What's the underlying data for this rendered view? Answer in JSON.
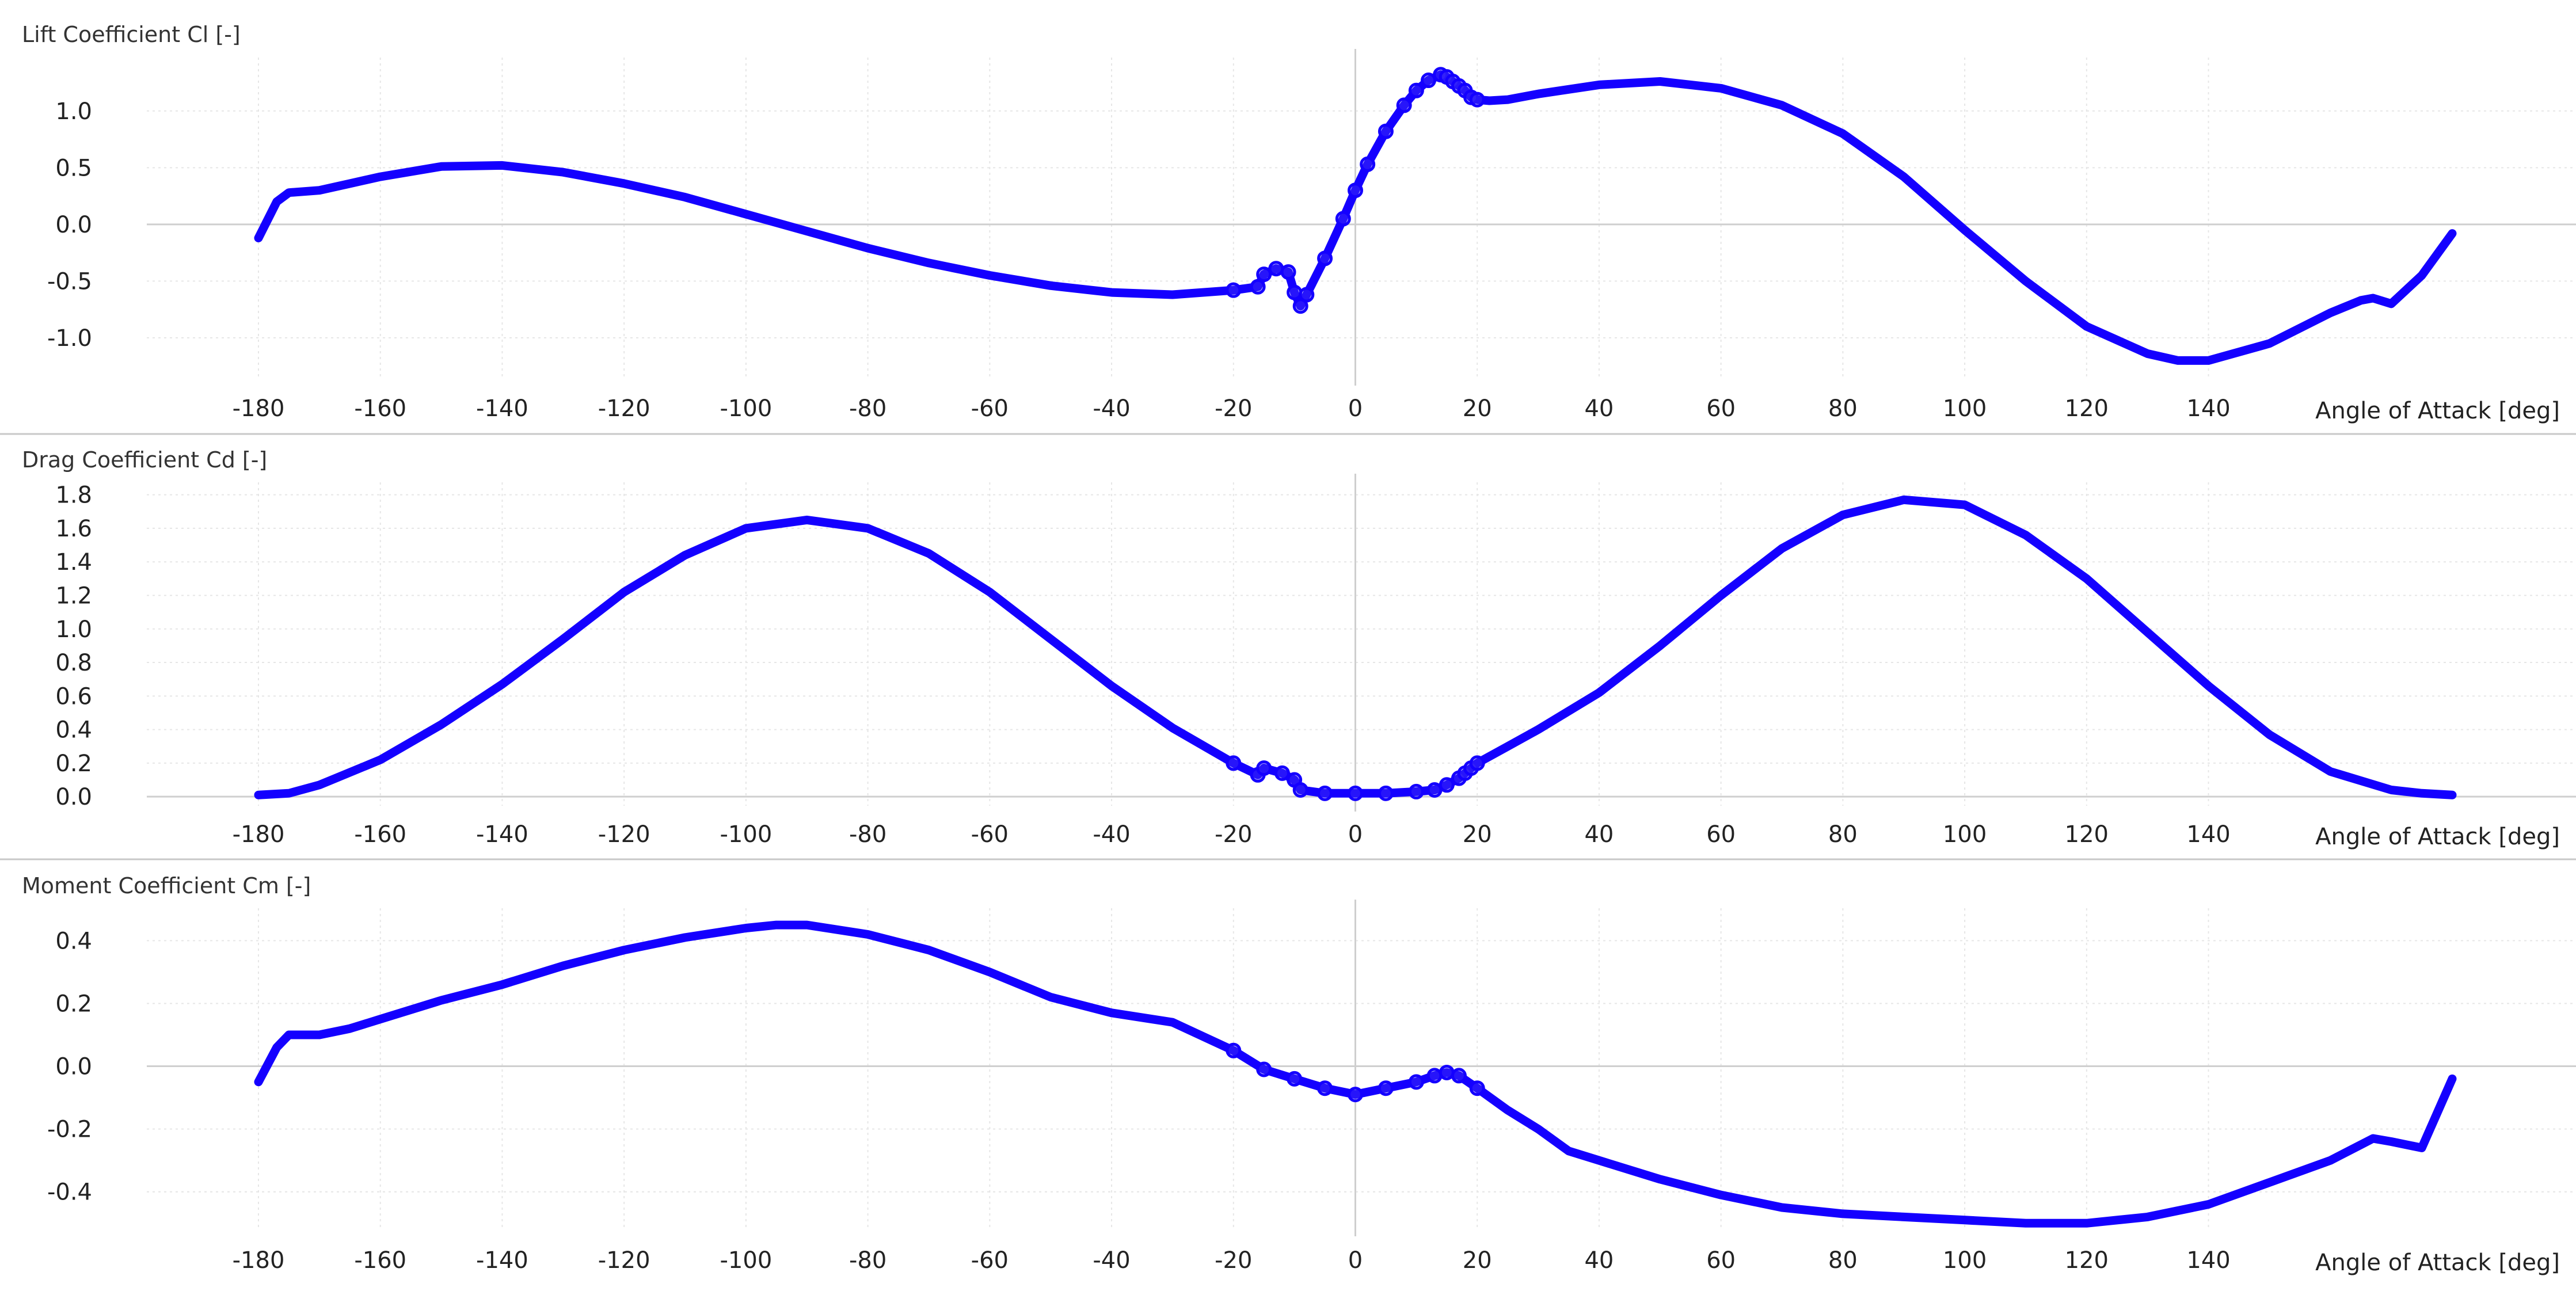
{
  "colors": {
    "line": "#1400ff",
    "grid": "#e6e6e6",
    "axis": "#cfcfcf",
    "text": "#222222"
  },
  "chart_data": [
    {
      "type": "line",
      "title": "Lift Coefficient Cl [-]",
      "xlabel": "Angle of Attack [deg]",
      "xlim": [
        -180,
        180
      ],
      "ylim": [
        -1.32,
        1.42
      ],
      "xticks": [
        -180,
        -160,
        -140,
        -120,
        -100,
        -80,
        -60,
        -40,
        -20,
        0,
        20,
        40,
        60,
        80,
        100,
        120,
        140
      ],
      "yticks": [
        1.0,
        0.5,
        0.0,
        -0.5,
        -1.0
      ],
      "ytick_labels": [
        "1.0",
        "0.5",
        "0.0",
        "-0.5",
        "-1.0"
      ],
      "grid": true,
      "series": [
        {
          "x": [
            -180,
            -177,
            -175,
            -170,
            -165,
            -160,
            -150,
            -140,
            -130,
            -120,
            -110,
            -100,
            -90,
            -80,
            -70,
            -60,
            -50,
            -40,
            -30,
            -20,
            -16,
            -15,
            -13,
            -11,
            -10,
            -9,
            -8,
            -5,
            -2,
            0,
            2,
            5,
            8,
            10,
            12,
            14,
            15,
            16,
            17,
            18,
            19,
            20,
            22,
            25,
            30,
            40,
            50,
            60,
            70,
            80,
            90,
            100,
            110,
            120,
            130,
            135,
            140,
            150,
            160,
            165,
            167,
            170,
            175,
            180
          ],
          "y": [
            -0.12,
            0.2,
            0.28,
            0.3,
            0.36,
            0.42,
            0.51,
            0.52,
            0.46,
            0.36,
            0.24,
            0.09,
            -0.06,
            -0.21,
            -0.34,
            -0.45,
            -0.54,
            -0.6,
            -0.62,
            -0.58,
            -0.55,
            -0.44,
            -0.39,
            -0.42,
            -0.6,
            -0.72,
            -0.62,
            -0.3,
            0.05,
            0.3,
            0.53,
            0.82,
            1.05,
            1.18,
            1.27,
            1.32,
            1.3,
            1.26,
            1.22,
            1.18,
            1.12,
            1.1,
            1.09,
            1.1,
            1.15,
            1.23,
            1.26,
            1.2,
            1.05,
            0.8,
            0.42,
            -0.05,
            -0.5,
            -0.9,
            -1.14,
            -1.2,
            -1.2,
            -1.05,
            -0.78,
            -0.67,
            -0.65,
            -0.7,
            -0.45,
            -0.08
          ]
        }
      ]
    },
    {
      "type": "line",
      "title": "Drag Coefficient Cd [-]",
      "xlabel": "Angle of Attack [deg]",
      "xlim": [
        -180,
        180
      ],
      "ylim": [
        -0.02,
        1.84
      ],
      "xticks": [
        -180,
        -160,
        -140,
        -120,
        -100,
        -80,
        -60,
        -40,
        -20,
        0,
        20,
        40,
        60,
        80,
        100,
        120,
        140
      ],
      "yticks": [
        1.8,
        1.6,
        1.4,
        1.2,
        1.0,
        0.8,
        0.6,
        0.4,
        0.2,
        0.0
      ],
      "ytick_labels": [
        "1.8",
        "1.6",
        "1.4",
        "1.2",
        "1.0",
        "0.8",
        "0.6",
        "0.4",
        "0.2",
        "0.0"
      ],
      "grid": true,
      "series": [
        {
          "x": [
            -180,
            -175,
            -170,
            -160,
            -150,
            -140,
            -130,
            -120,
            -110,
            -100,
            -90,
            -80,
            -70,
            -60,
            -50,
            -40,
            -30,
            -20,
            -16,
            -15,
            -12,
            -10,
            -9,
            -5,
            0,
            5,
            10,
            13,
            15,
            17,
            18,
            19,
            20,
            25,
            30,
            40,
            50,
            60,
            70,
            80,
            90,
            100,
            110,
            120,
            130,
            140,
            150,
            160,
            170,
            175,
            180
          ],
          "y": [
            0.01,
            0.02,
            0.07,
            0.22,
            0.43,
            0.67,
            0.94,
            1.22,
            1.44,
            1.6,
            1.65,
            1.6,
            1.45,
            1.22,
            0.94,
            0.66,
            0.41,
            0.2,
            0.13,
            0.17,
            0.14,
            0.1,
            0.04,
            0.02,
            0.02,
            0.02,
            0.03,
            0.04,
            0.07,
            0.11,
            0.14,
            0.17,
            0.2,
            0.3,
            0.4,
            0.62,
            0.9,
            1.2,
            1.48,
            1.68,
            1.77,
            1.74,
            1.56,
            1.3,
            0.98,
            0.66,
            0.37,
            0.15,
            0.04,
            0.02,
            0.01
          ]
        }
      ]
    },
    {
      "type": "line",
      "title": "Moment Coefficient Cm [-]",
      "xlabel": "Angle of Attack [deg]",
      "xlim": [
        -180,
        180
      ],
      "ylim": [
        -0.505,
        0.485
      ],
      "xticks": [
        -180,
        -160,
        -140,
        -120,
        -100,
        -80,
        -60,
        -40,
        -20,
        0,
        20,
        40,
        60,
        80,
        100,
        120,
        140
      ],
      "yticks": [
        0.4,
        0.2,
        0.0,
        -0.2,
        -0.4
      ],
      "ytick_labels": [
        "0.4",
        "0.2",
        "0.0",
        "-0.2",
        "-0.4"
      ],
      "grid": true,
      "series": [
        {
          "x": [
            -180,
            -177,
            -175,
            -170,
            -165,
            -160,
            -150,
            -140,
            -130,
            -120,
            -110,
            -100,
            -95,
            -90,
            -80,
            -70,
            -60,
            -50,
            -40,
            -30,
            -20,
            -15,
            -10,
            -5,
            0,
            5,
            10,
            13,
            15,
            17,
            20,
            25,
            30,
            35,
            40,
            50,
            60,
            70,
            80,
            90,
            100,
            110,
            120,
            130,
            140,
            150,
            160,
            165,
            167,
            170,
            175,
            180
          ],
          "y": [
            -0.05,
            0.06,
            0.1,
            0.1,
            0.12,
            0.15,
            0.21,
            0.26,
            0.32,
            0.37,
            0.41,
            0.44,
            0.45,
            0.45,
            0.42,
            0.37,
            0.3,
            0.22,
            0.17,
            0.14,
            0.05,
            -0.01,
            -0.04,
            -0.07,
            -0.09,
            -0.07,
            -0.05,
            -0.03,
            -0.02,
            -0.03,
            -0.07,
            -0.14,
            -0.2,
            -0.27,
            -0.3,
            -0.36,
            -0.41,
            -0.45,
            -0.47,
            -0.48,
            -0.49,
            -0.5,
            -0.5,
            -0.48,
            -0.44,
            -0.37,
            -0.3,
            -0.25,
            -0.23,
            -0.24,
            -0.26,
            -0.04
          ]
        }
      ]
    }
  ]
}
